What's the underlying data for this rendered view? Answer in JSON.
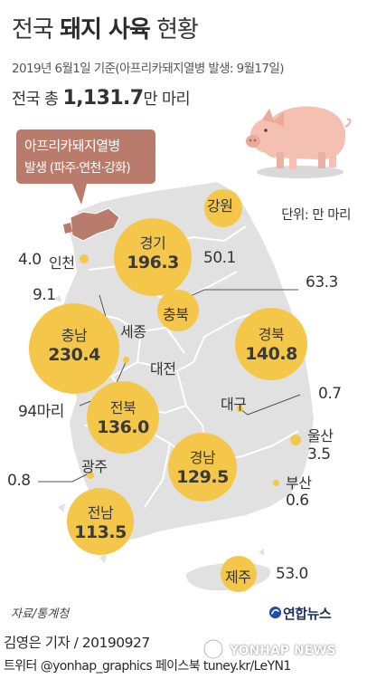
{
  "title": {
    "plain": "전국",
    "bold": "돼지 사육",
    "tail": "현황"
  },
  "subtitle": "2019년 6월1일 기준(아프리카돼지열병 발생: 9월17일)",
  "total": {
    "prefix": "전국 총",
    "value": "1,131.7",
    "suffix": "만 마리"
  },
  "unit": "단위: 만 마리",
  "callout": {
    "line1": "아프리카돼지열병",
    "line2": "발생 (파주·연천·강화)"
  },
  "regions": [
    {
      "id": "incheon",
      "name": "인천",
      "value": "4.0"
    },
    {
      "id": "gyeonggi",
      "name": "경기",
      "value": "196.3"
    },
    {
      "id": "gangwon",
      "name": "강원",
      "value": "50.1"
    },
    {
      "id": "chungbuk",
      "name": "충북",
      "value": "63.3"
    },
    {
      "id": "sejong",
      "name": "세종",
      "value": "9.1"
    },
    {
      "id": "chungnam",
      "name": "충남",
      "value": "230.4"
    },
    {
      "id": "daejeon",
      "name": "대전",
      "value": "94마리"
    },
    {
      "id": "gyeongbuk",
      "name": "경북",
      "value": "140.8"
    },
    {
      "id": "daegu",
      "name": "대구",
      "value": "0.7"
    },
    {
      "id": "jeonbuk",
      "name": "전북",
      "value": "136.0"
    },
    {
      "id": "ulsan",
      "name": "울산",
      "value": "3.5"
    },
    {
      "id": "gwangju",
      "name": "광주",
      "value": "0.8"
    },
    {
      "id": "gyeongnam",
      "name": "경남",
      "value": "129.5"
    },
    {
      "id": "busan",
      "name": "부산",
      "value": "0.6"
    },
    {
      "id": "jeonnam",
      "name": "전남",
      "value": "113.5"
    },
    {
      "id": "jeju",
      "name": "제주",
      "value": "53.0"
    }
  ],
  "source": "자료/통계청",
  "logo": "연합뉴스",
  "reporter": "김영은 기자 / 20190927",
  "social": "트위터 @yonhap_graphics  페이스북 tuney.kr/LeYN1",
  "watermark": "YONHAP NEWS",
  "colors": {
    "bubble": "#f4c74a",
    "map": "#e1e1e1",
    "outbreak": "#b97b6b",
    "pig": "#f3c0b2"
  }
}
